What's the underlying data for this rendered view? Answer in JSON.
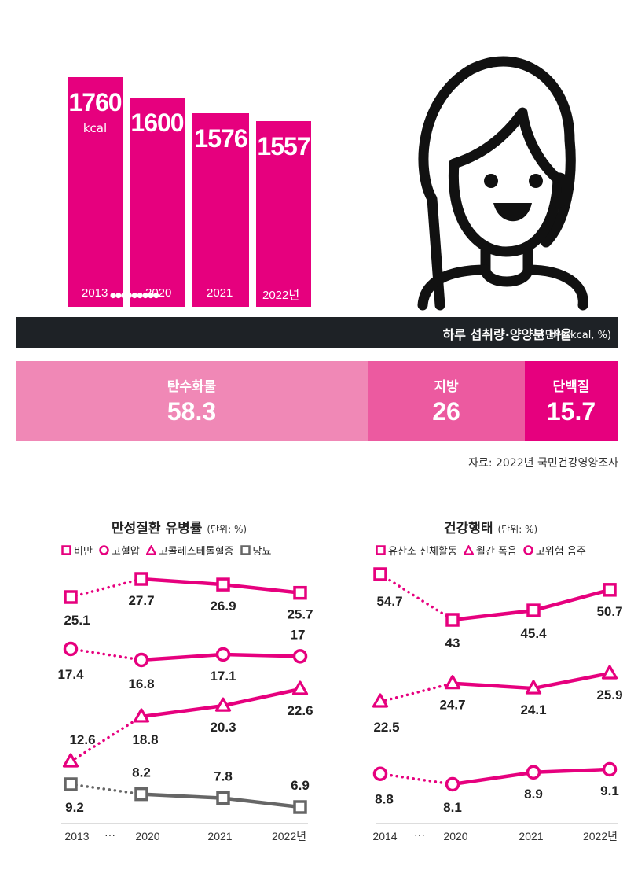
{
  "bars": {
    "unit": "kcal",
    "years": [
      "2013",
      "2020",
      "2021",
      "2022년"
    ],
    "values": [
      1760,
      1600,
      1576,
      1557
    ],
    "color": "#e6007e"
  },
  "banner": {
    "title": "하루 섭취량·양양분 비율",
    "unit": "(단위: kcal, %)"
  },
  "nutrients": [
    {
      "label": "탄수화물",
      "value": "58.3",
      "color": "#f088b6"
    },
    {
      "label": "지방",
      "value": "26",
      "color": "#ec5aa0"
    },
    {
      "label": "단백질",
      "value": "15.7",
      "color": "#e6007e"
    }
  ],
  "source": "자료: 2022년 국민건강영양조사",
  "chart_data": [
    {
      "type": "line",
      "title": "만성질환 유병률",
      "unit": "(단위: %)",
      "x": [
        "2013",
        "2020",
        "2021",
        "2022년"
      ],
      "x_gap_label": "···",
      "series": [
        {
          "name": "비만",
          "marker": "square",
          "color": "#e6007e",
          "values": [
            25.1,
            27.7,
            26.9,
            25.7
          ],
          "labels": [
            "25.1",
            "27.7",
            "26.9",
            "25.7"
          ]
        },
        {
          "name": "고혈압",
          "marker": "circle",
          "color": "#e6007e",
          "values": [
            17.4,
            16.8,
            17.1,
            17
          ],
          "labels": [
            "17.4",
            "16.8",
            "17.1",
            "17"
          ]
        },
        {
          "name": "고콜레스테롤혈증",
          "marker": "triangle",
          "color": "#e6007e",
          "values": [
            12.6,
            18.8,
            20.3,
            22.6
          ],
          "labels": [
            "12.6",
            "18.8",
            "20.3",
            "22.6"
          ]
        },
        {
          "name": "당뇨",
          "marker": "square",
          "color": "#666666",
          "values": [
            9.2,
            8.2,
            7.8,
            6.9
          ],
          "labels": [
            "9.2",
            "8.2",
            "7.8",
            "6.9"
          ]
        }
      ]
    },
    {
      "type": "line",
      "title": "건강행태",
      "unit": "(단위: %)",
      "x": [
        "2014",
        "2020",
        "2021",
        "2022년"
      ],
      "x_gap_label": "···",
      "series": [
        {
          "name": "유산소 신체활동",
          "marker": "square",
          "color": "#e6007e",
          "values": [
            54.7,
            43,
            45.4,
            50.7
          ],
          "labels": [
            "54.7",
            "43",
            "45.4",
            "50.7"
          ]
        },
        {
          "name": "월간 폭음",
          "marker": "triangle",
          "color": "#e6007e",
          "values": [
            22.5,
            24.7,
            24.1,
            25.9
          ],
          "labels": [
            "22.5",
            "24.7",
            "24.1",
            "25.9"
          ]
        },
        {
          "name": "고위험 음주",
          "marker": "circle",
          "color": "#e6007e",
          "values": [
            8.8,
            8.1,
            8.9,
            9.1
          ],
          "labels": [
            "8.8",
            "8.1",
            "8.9",
            "9.1"
          ]
        }
      ]
    }
  ]
}
